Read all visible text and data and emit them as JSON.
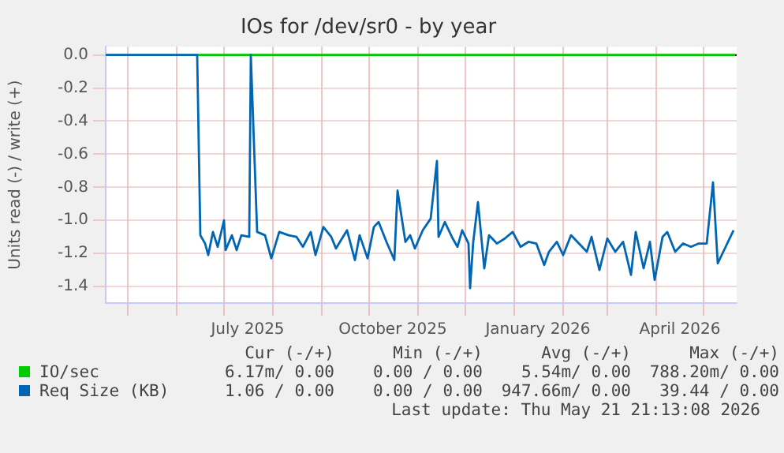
{
  "chart_data": {
    "type": "line",
    "title": "IOs for /dev/sr0 - by year",
    "ylabel": "Units read (-) / write (+)",
    "xlim": [
      "2025-04-17",
      "2026-05-22"
    ],
    "xticks": [
      {
        "value": "2025-05-01",
        "label": null
      },
      {
        "value": "2025-06-01",
        "label": null
      },
      {
        "value": "2025-07-01",
        "label": null
      },
      {
        "value": "2025-07-16",
        "label": "July 2025"
      },
      {
        "value": "2025-08-01",
        "label": null
      },
      {
        "value": "2025-09-01",
        "label": null
      },
      {
        "value": "2025-10-01",
        "label": null
      },
      {
        "value": "2025-10-16",
        "label": "October 2025"
      },
      {
        "value": "2025-11-01",
        "label": null
      },
      {
        "value": "2025-12-01",
        "label": null
      },
      {
        "value": "2026-01-01",
        "label": null
      },
      {
        "value": "2026-01-16",
        "label": "January 2026"
      },
      {
        "value": "2026-02-01",
        "label": null
      },
      {
        "value": "2026-03-01",
        "label": null
      },
      {
        "value": "2026-04-01",
        "label": null
      },
      {
        "value": "2026-04-16",
        "label": "April 2026"
      },
      {
        "value": "2026-05-01",
        "label": null
      }
    ],
    "ylim": [
      -1.5,
      0.05
    ],
    "yticks": [
      {
        "value": 0,
        "label": "0.0"
      },
      -0.2,
      -0.4,
      -0.6,
      -0.8,
      {
        "value": -1,
        "label": "-1.0"
      },
      -1.2,
      -1.4
    ],
    "grid": true,
    "legend": "bottom",
    "marker": "none",
    "ref_lines": [
      {
        "axis": "y",
        "value": 0,
        "color": "#000000"
      }
    ],
    "series": [
      {
        "name": "IO/sec",
        "color": "#00cc00",
        "x": [
          "2025-06-14",
          "2026-05-21"
        ],
        "values": [
          0,
          0
        ]
      },
      {
        "name": "Req Size (KB)",
        "color": "#0066b3",
        "x": [
          "2025-04-17",
          "2025-06-14",
          "2025-06-16",
          "2025-06-19",
          "2025-06-21",
          "2025-06-24",
          "2025-06-27",
          "2025-07-01",
          "2025-07-02",
          "2025-07-06",
          "2025-07-09",
          "2025-07-12",
          "2025-07-17",
          "2025-07-18",
          "2025-07-22",
          "2025-07-27",
          "2025-07-31",
          "2025-08-05",
          "2025-08-11",
          "2025-08-16",
          "2025-08-20",
          "2025-08-25",
          "2025-08-28",
          "2025-09-02",
          "2025-09-07",
          "2025-09-10",
          "2025-09-17",
          "2025-09-22",
          "2025-09-25",
          "2025-09-30",
          "2025-10-04",
          "2025-10-07",
          "2025-10-12",
          "2025-10-17",
          "2025-10-19",
          "2025-10-24",
          "2025-10-27",
          "2025-10-30",
          "2025-11-04",
          "2025-11-09",
          "2025-11-13",
          "2025-11-14",
          "2025-11-18",
          "2025-11-23",
          "2025-11-26",
          "2025-11-29",
          "2025-12-03",
          "2025-12-04",
          "2025-12-06",
          "2025-12-09",
          "2025-12-13",
          "2025-12-16",
          "2025-12-21",
          "2025-12-26",
          "2025-12-31",
          "2026-01-05",
          "2026-01-10",
          "2026-01-15",
          "2026-01-20",
          "2026-01-23",
          "2026-01-28",
          "2026-02-01",
          "2026-02-06",
          "2026-02-11",
          "2026-02-16",
          "2026-02-19",
          "2026-02-24",
          "2026-03-01",
          "2026-03-06",
          "2026-03-11",
          "2026-03-16",
          "2026-03-19",
          "2026-03-24",
          "2026-03-28",
          "2026-03-31",
          "2026-04-05",
          "2026-04-08",
          "2026-04-13",
          "2026-04-18",
          "2026-04-23",
          "2026-04-28",
          "2026-05-03",
          "2026-05-07",
          "2026-05-10",
          "2026-05-15",
          "2026-05-20"
        ],
        "values": [
          0,
          0,
          -1.09,
          -1.14,
          -1.21,
          -1.07,
          -1.16,
          -1.0,
          -1.18,
          -1.09,
          -1.18,
          -1.09,
          -1.1,
          0,
          -1.07,
          -1.09,
          -1.23,
          -1.07,
          -1.09,
          -1.1,
          -1.16,
          -1.07,
          -1.21,
          -1.04,
          -1.1,
          -1.17,
          -1.06,
          -1.24,
          -1.09,
          -1.23,
          -1.04,
          -1.01,
          -1.13,
          -1.24,
          -0.82,
          -1.13,
          -1.09,
          -1.17,
          -1.06,
          -0.99,
          -0.64,
          -1.1,
          -1.01,
          -1.11,
          -1.16,
          -1.06,
          -1.14,
          -1.41,
          -1.13,
          -0.89,
          -1.29,
          -1.09,
          -1.14,
          -1.11,
          -1.07,
          -1.16,
          -1.13,
          -1.14,
          -1.27,
          -1.19,
          -1.13,
          -1.21,
          -1.09,
          -1.14,
          -1.19,
          -1.1,
          -1.3,
          -1.11,
          -1.19,
          -1.13,
          -1.33,
          -1.07,
          -1.29,
          -1.13,
          -1.36,
          -1.1,
          -1.07,
          -1.19,
          -1.14,
          -1.16,
          -1.14,
          -1.14,
          -0.77,
          -1.26,
          -1.16,
          -1.06
        ]
      }
    ],
    "annotations": [
      "Cur (-/+)",
      "Min (-/+)",
      "Avg (-/+)",
      "Max (-/+)",
      "6.17m/ 0.00",
      "0.00 / 0.00",
      "5.54m/ 0.00",
      "788.20m/ 0.00",
      "1.06 / 0.00",
      "0.00 / 0.00",
      "947.66m/ 0.00",
      "39.44 / 0.00",
      "Last update: Thu May 21 21:13:08 2026"
    ]
  }
}
